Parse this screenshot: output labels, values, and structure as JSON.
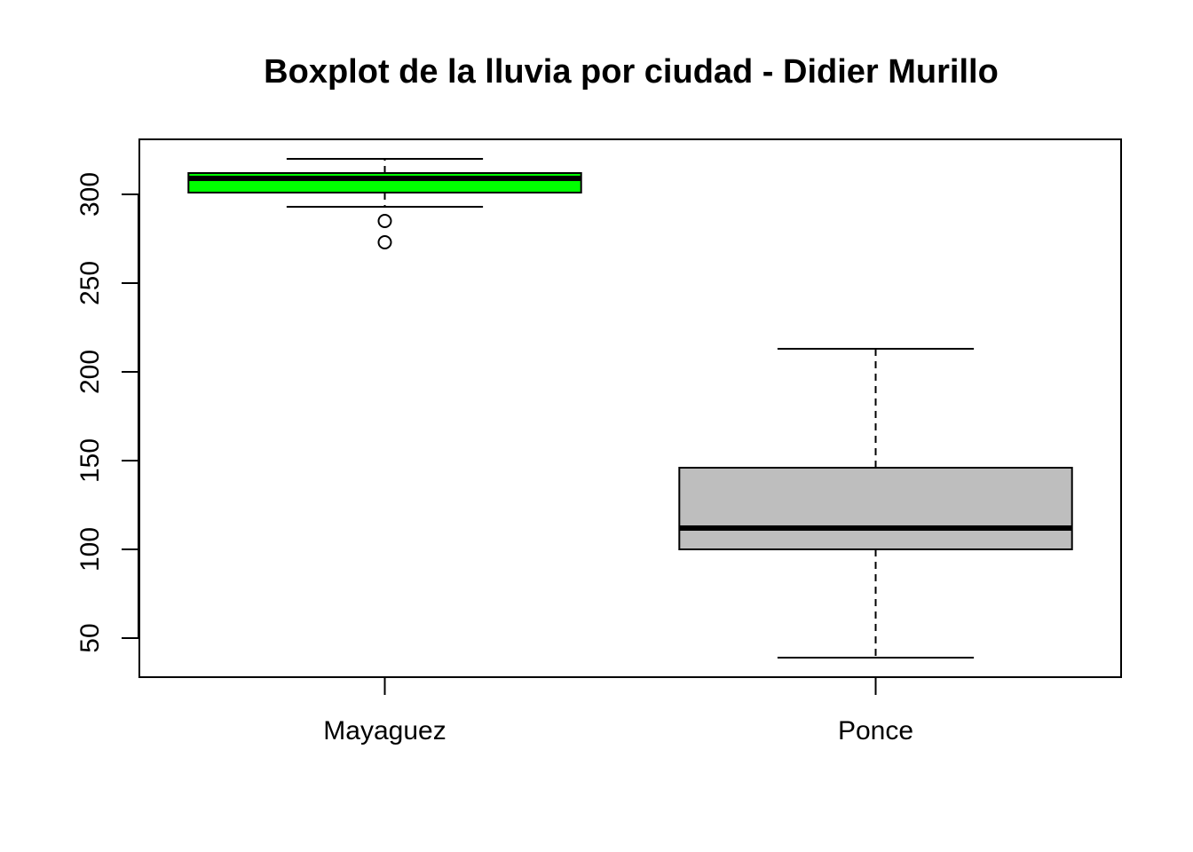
{
  "chart_data": {
    "type": "boxplot",
    "title": "Boxplot de la lluvia por ciudad - Didier Murillo",
    "xlabel": "",
    "ylabel": "",
    "categories": [
      "Mayaguez",
      "Ponce"
    ],
    "ylim": [
      28,
      331
    ],
    "yticks": [
      50,
      100,
      150,
      200,
      250,
      300
    ],
    "grid": false,
    "legend": "none",
    "boxes": [
      {
        "category": "Mayaguez",
        "whisker_low": 293,
        "q1": 301,
        "median": 309,
        "q3": 312,
        "whisker_high": 320,
        "outliers": [
          285,
          273
        ],
        "color": "#00ff00"
      },
      {
        "category": "Ponce",
        "whisker_low": 39,
        "q1": 100,
        "median": 112,
        "q3": 146,
        "whisker_high": 213,
        "outliers": [],
        "color": "#bebebe"
      }
    ]
  }
}
